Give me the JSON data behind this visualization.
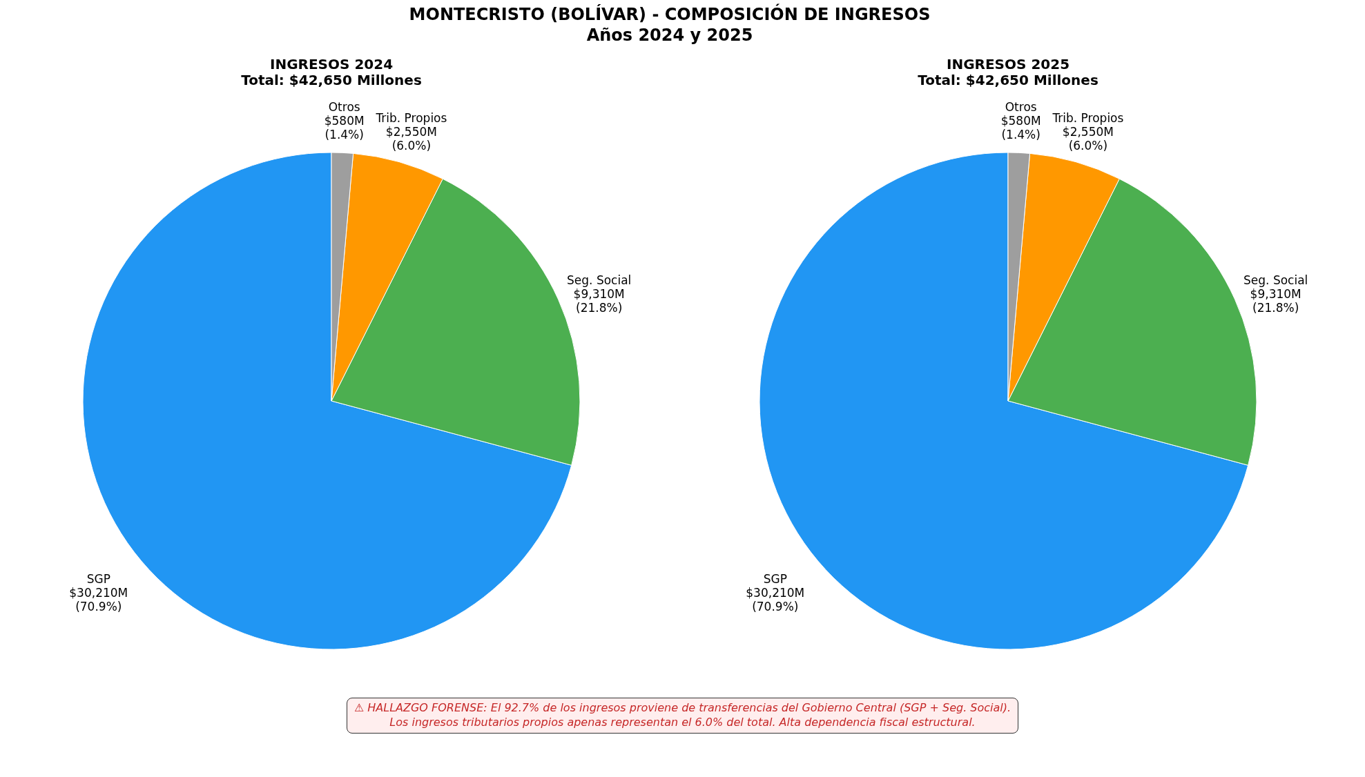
{
  "chart_data": [
    {
      "type": "pie",
      "title": "INGRESOS 2024",
      "subtitle": "Total: $42,650 Millones",
      "categories": [
        "SGP",
        "Seg. Social",
        "Trib. Propios",
        "Otros"
      ],
      "values": [
        70.9,
        21.8,
        6.0,
        1.4
      ],
      "colors": [
        "#2196f3",
        "#4caf50",
        "#ff9800",
        "#9e9e9e"
      ],
      "value_labels": [
        "$30,210M\n(70.9%)",
        "$9,310M\n(21.8%)",
        "$2,550M\n(6.0%)",
        "$580M\n(1.4%)"
      ],
      "annotations": [
        "MONTECRISTO (BOLÍVAR) - COMPOSICIÓN DE INGRESOS\nAños 2024 y 2025",
        "⚠ HALLAZGO FORENSE: El 92.7% de los ingresos proviene de transferencias del Gobierno Central (SGP + Seg. Social).\nLos ingresos tributarios propios apenas representan el 6.0% del total. Alta dependencia fiscal estructural."
      ]
    },
    {
      "type": "pie",
      "title": "INGRESOS 2025",
      "subtitle": "Total: $42,650 Millones",
      "categories": [
        "SGP",
        "Seg. Social",
        "Trib. Propios",
        "Otros"
      ],
      "values": [
        70.9,
        21.8,
        6.0,
        1.4
      ],
      "colors": [
        "#2196f3",
        "#4caf50",
        "#ff9800",
        "#9e9e9e"
      ],
      "value_labels": [
        "$30,210M\n(70.9%)",
        "$9,310M\n(21.8%)",
        "$2,550M\n(6.0%)",
        "$580M\n(1.4%)"
      ]
    }
  ]
}
